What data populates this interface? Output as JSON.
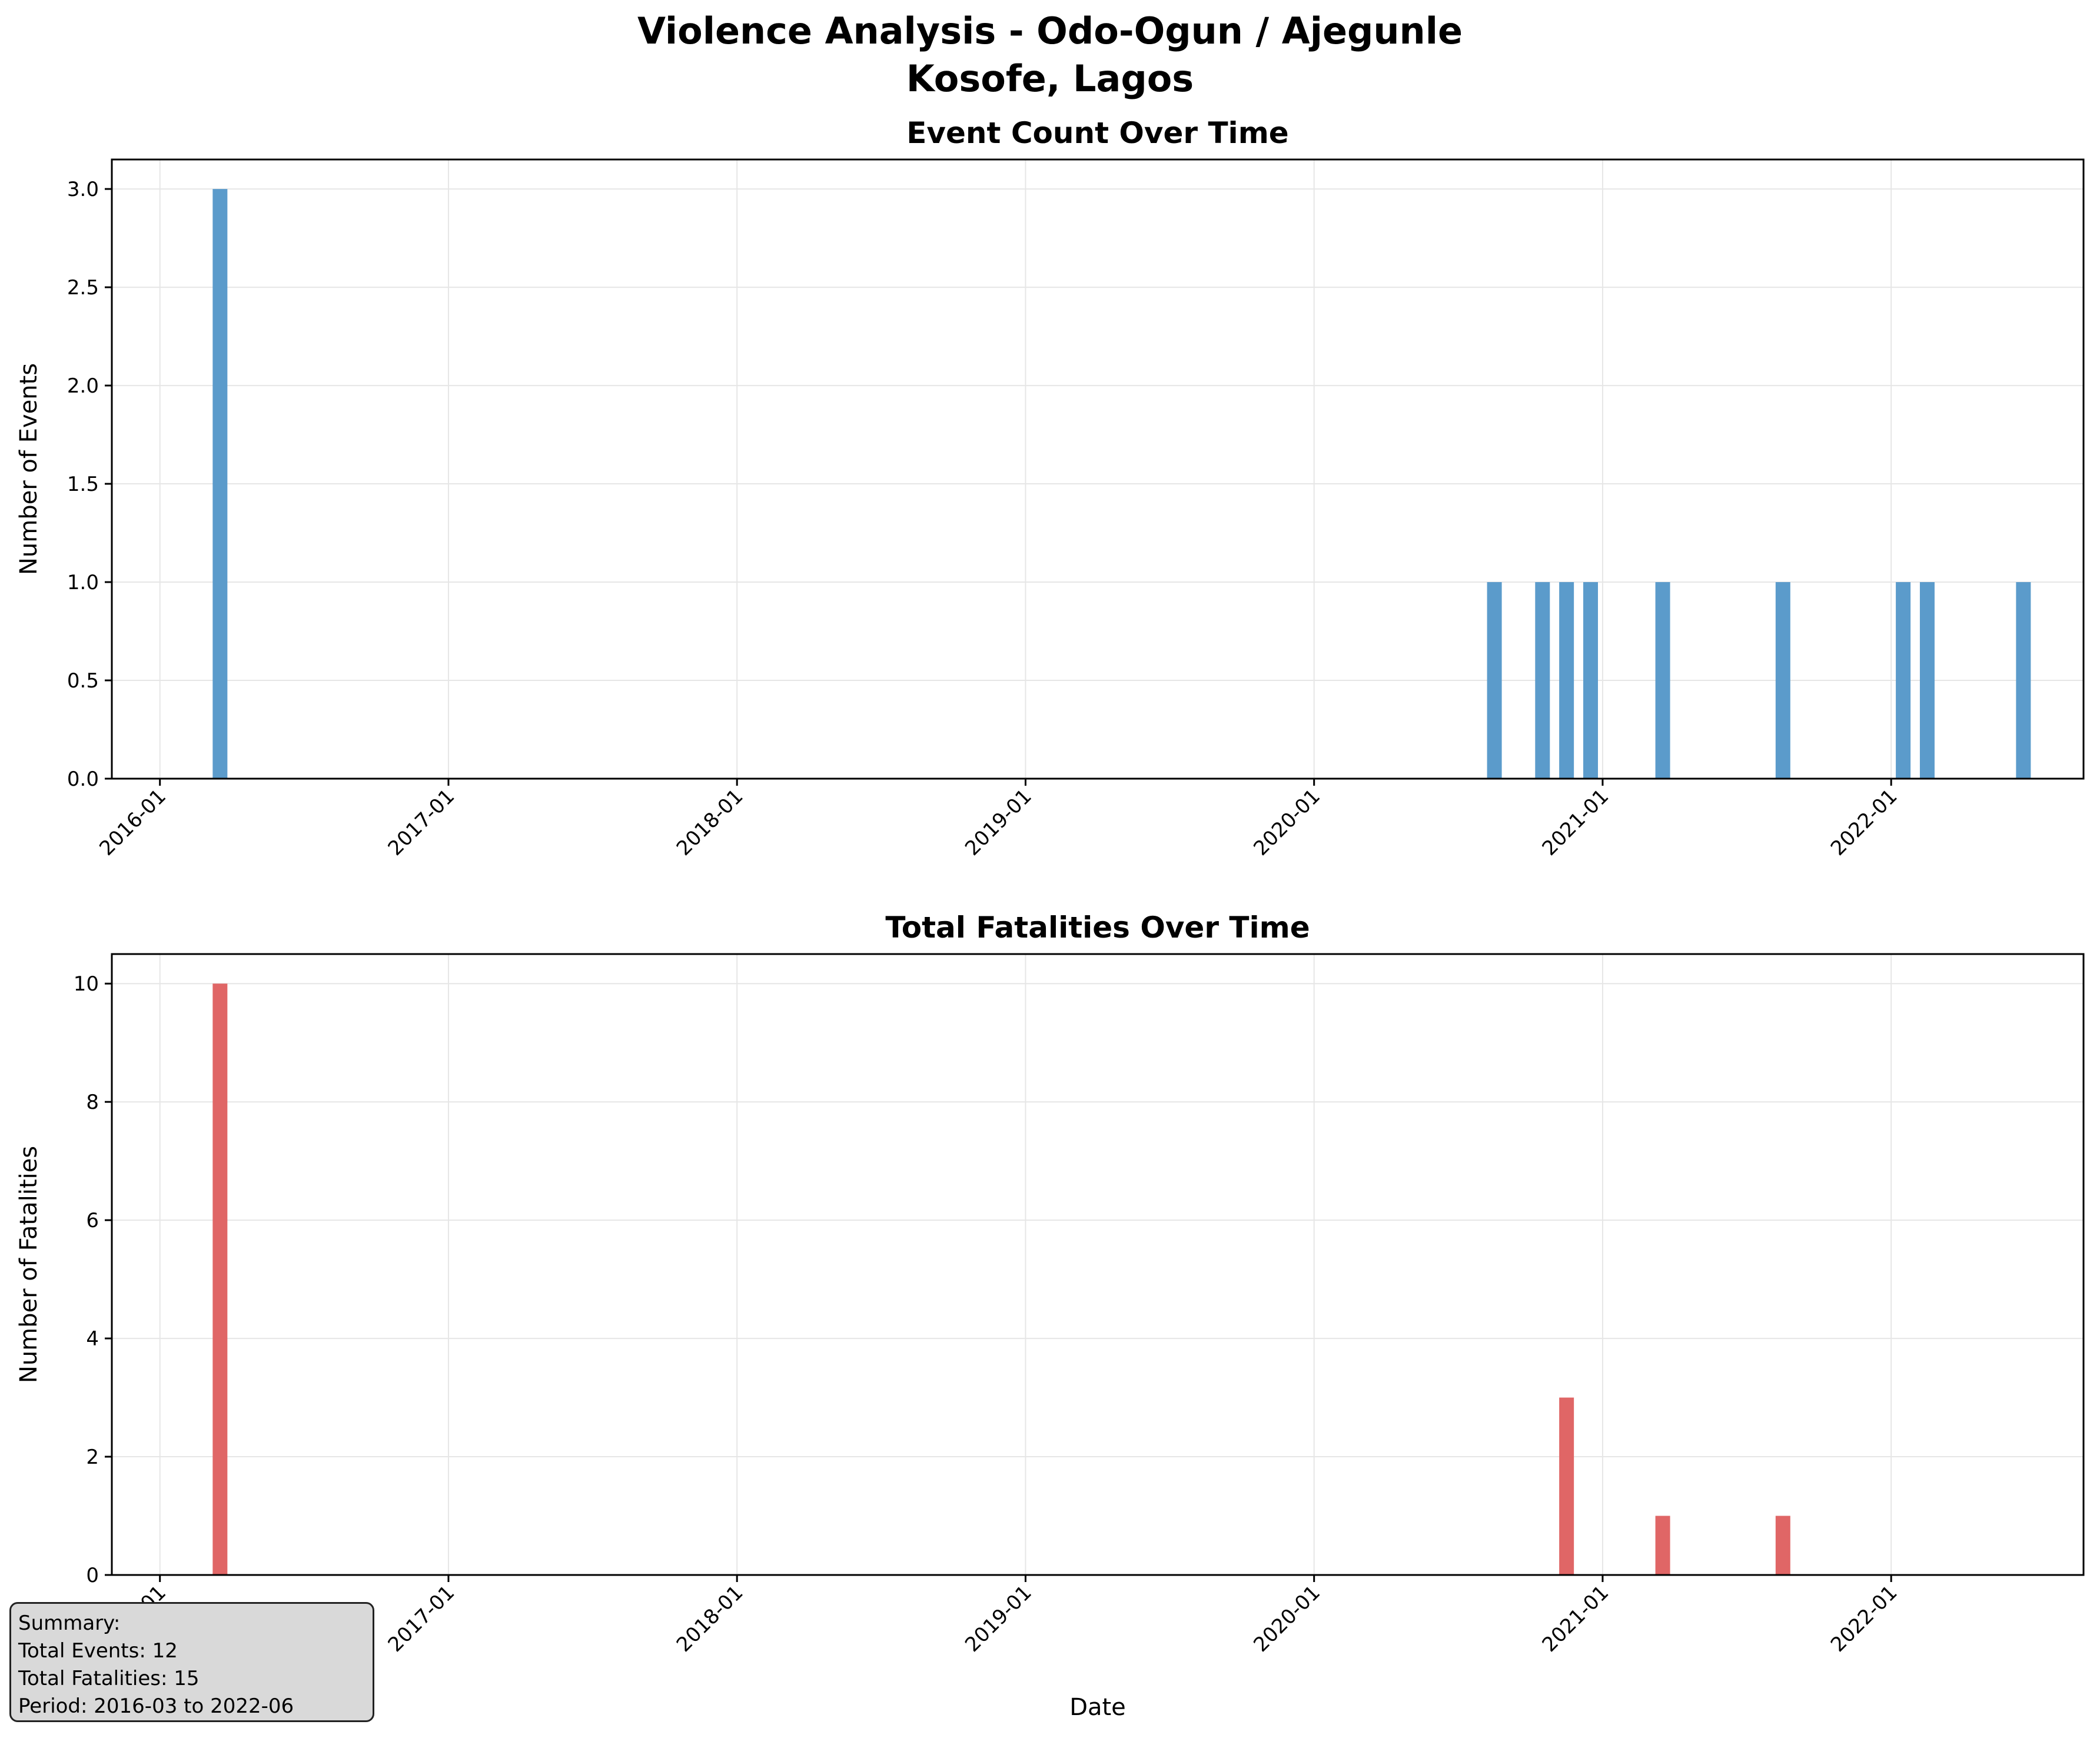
{
  "figure_title": [
    "Violence Analysis - Odo-Ogun / Ajegunle",
    "Kosofe, Lagos"
  ],
  "chart_data": [
    {
      "type": "bar",
      "title": "Event Count Over Time",
      "xlabel": "",
      "ylabel": "Number of Events",
      "x_axis": "date",
      "xticks": [
        "2016-01",
        "2017-01",
        "2018-01",
        "2019-01",
        "2020-01",
        "2021-01",
        "2022-01"
      ],
      "xlim": [
        "2015-11",
        "2022-09"
      ],
      "ylim": [
        0,
        3.15
      ],
      "yticks": [
        "0.0",
        "0.5",
        "1.0",
        "1.5",
        "2.0",
        "2.5",
        "3.0"
      ],
      "grid": true,
      "color": "#5b9bcb",
      "x": [
        "2016-03",
        "2020-08",
        "2020-10",
        "2020-11",
        "2020-12",
        "2021-03",
        "2021-08",
        "2022-01",
        "2022-02",
        "2022-06"
      ],
      "values": [
        3,
        1,
        1,
        1,
        1,
        1,
        1,
        1,
        1,
        1
      ]
    },
    {
      "type": "bar",
      "title": "Total Fatalities Over Time",
      "xlabel": "Date",
      "ylabel": "Number of Fatalities",
      "x_axis": "date",
      "xticks": [
        "2016-01",
        "2017-01",
        "2018-01",
        "2019-01",
        "2020-01",
        "2021-01",
        "2022-01"
      ],
      "xlim": [
        "2015-11",
        "2022-09"
      ],
      "ylim": [
        0,
        10.5
      ],
      "yticks": [
        "0",
        "2",
        "4",
        "6",
        "8",
        "10"
      ],
      "grid": true,
      "color": "#e06666",
      "x": [
        "2016-03",
        "2020-11",
        "2021-03",
        "2021-08"
      ],
      "values": [
        10,
        3,
        1,
        1
      ]
    }
  ],
  "summary": {
    "lines": [
      "Summary:",
      "Total Events: 12",
      "Total Fatalities: 15",
      "Period: 2016-03 to 2022-06"
    ]
  }
}
